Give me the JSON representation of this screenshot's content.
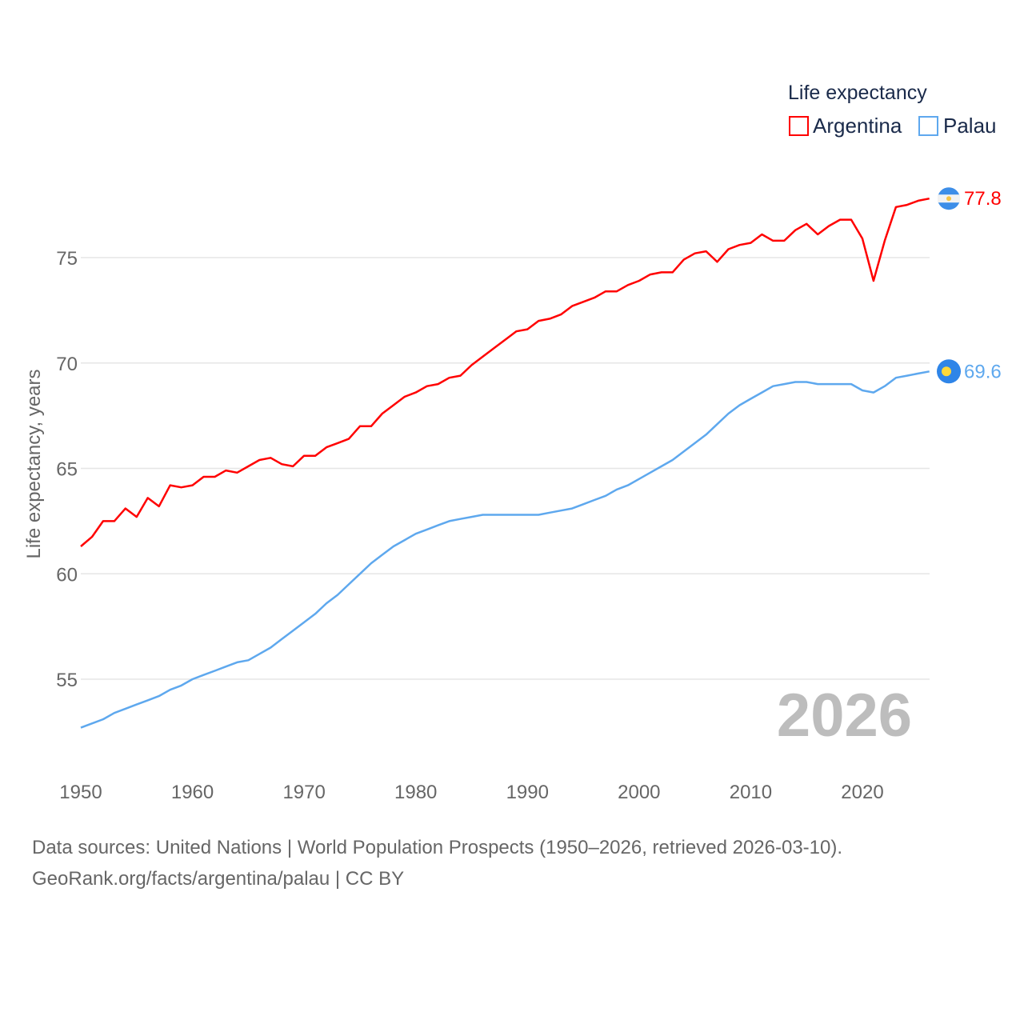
{
  "chart_data": {
    "type": "line",
    "title": "",
    "xlabel": "",
    "ylabel": "Life expectancy, years",
    "xlim": [
      1950,
      2026
    ],
    "ylim": [
      52,
      78.5
    ],
    "x_ticks": [
      "1950",
      "1960",
      "1970",
      "1980",
      "1990",
      "2000",
      "2010",
      "2020"
    ],
    "y_ticks": [
      "55",
      "60",
      "65",
      "70",
      "75"
    ],
    "grid": true,
    "legend": {
      "title": "Life expectancy",
      "placement": "top-right"
    },
    "year_label": "2026",
    "x": [
      1950,
      1951,
      1952,
      1953,
      1954,
      1955,
      1956,
      1957,
      1958,
      1959,
      1960,
      1961,
      1962,
      1963,
      1964,
      1965,
      1966,
      1967,
      1968,
      1969,
      1970,
      1971,
      1972,
      1973,
      1974,
      1975,
      1976,
      1977,
      1978,
      1979,
      1980,
      1981,
      1982,
      1983,
      1984,
      1985,
      1986,
      1987,
      1988,
      1989,
      1990,
      1991,
      1992,
      1993,
      1994,
      1995,
      1996,
      1997,
      1998,
      1999,
      2000,
      2001,
      2002,
      2003,
      2004,
      2005,
      2006,
      2007,
      2008,
      2009,
      2010,
      2011,
      2012,
      2013,
      2014,
      2015,
      2016,
      2017,
      2018,
      2019,
      2020,
      2021,
      2022,
      2023,
      2024,
      2025,
      2026
    ],
    "series": [
      {
        "name": "Argentina",
        "color": "#ff0000",
        "end_label": "77.8",
        "values": [
          61.3,
          61.75,
          62.5,
          62.5,
          63.1,
          62.7,
          63.6,
          63.2,
          64.2,
          64.1,
          64.2,
          64.6,
          64.6,
          64.9,
          64.8,
          65.1,
          65.4,
          65.5,
          65.2,
          65.1,
          65.6,
          65.6,
          66.0,
          66.2,
          66.4,
          67.0,
          67.0,
          67.6,
          68.0,
          68.4,
          68.6,
          68.9,
          69.0,
          69.3,
          69.4,
          69.9,
          70.3,
          70.7,
          71.1,
          71.5,
          71.6,
          72.0,
          72.1,
          72.3,
          72.7,
          72.9,
          73.1,
          73.4,
          73.4,
          73.7,
          73.9,
          74.2,
          74.3,
          74.3,
          74.9,
          75.2,
          75.3,
          74.8,
          75.4,
          75.6,
          75.7,
          76.1,
          75.8,
          75.8,
          76.3,
          76.6,
          76.1,
          76.5,
          76.8,
          76.8,
          75.9,
          73.9,
          75.8,
          77.4,
          77.5,
          77.7,
          77.8
        ]
      },
      {
        "name": "Palau",
        "color": "#5ea8ee",
        "end_label": "69.6",
        "values": [
          52.7,
          52.9,
          53.1,
          53.4,
          53.6,
          53.8,
          54.0,
          54.2,
          54.5,
          54.7,
          55.0,
          55.2,
          55.4,
          55.6,
          55.8,
          55.9,
          56.2,
          56.5,
          56.9,
          57.3,
          57.7,
          58.1,
          58.6,
          59.0,
          59.5,
          60.0,
          60.5,
          60.9,
          61.3,
          61.6,
          61.9,
          62.1,
          62.3,
          62.5,
          62.6,
          62.7,
          62.8,
          62.8,
          62.8,
          62.8,
          62.8,
          62.8,
          62.9,
          63.0,
          63.1,
          63.3,
          63.5,
          63.7,
          64.0,
          64.2,
          64.5,
          64.8,
          65.1,
          65.4,
          65.8,
          66.2,
          66.6,
          67.1,
          67.6,
          68.0,
          68.3,
          68.6,
          68.9,
          69.0,
          69.1,
          69.1,
          69.0,
          69.0,
          69.0,
          69.0,
          68.7,
          68.6,
          68.9,
          69.3,
          69.4,
          69.5,
          69.6
        ]
      }
    ]
  },
  "footer": {
    "line1": "Data sources: United Nations | World Population Prospects (1950–2026, retrieved 2026-03-10).",
    "line2": "GeoRank.org/facts/argentina/palau | CC BY"
  }
}
